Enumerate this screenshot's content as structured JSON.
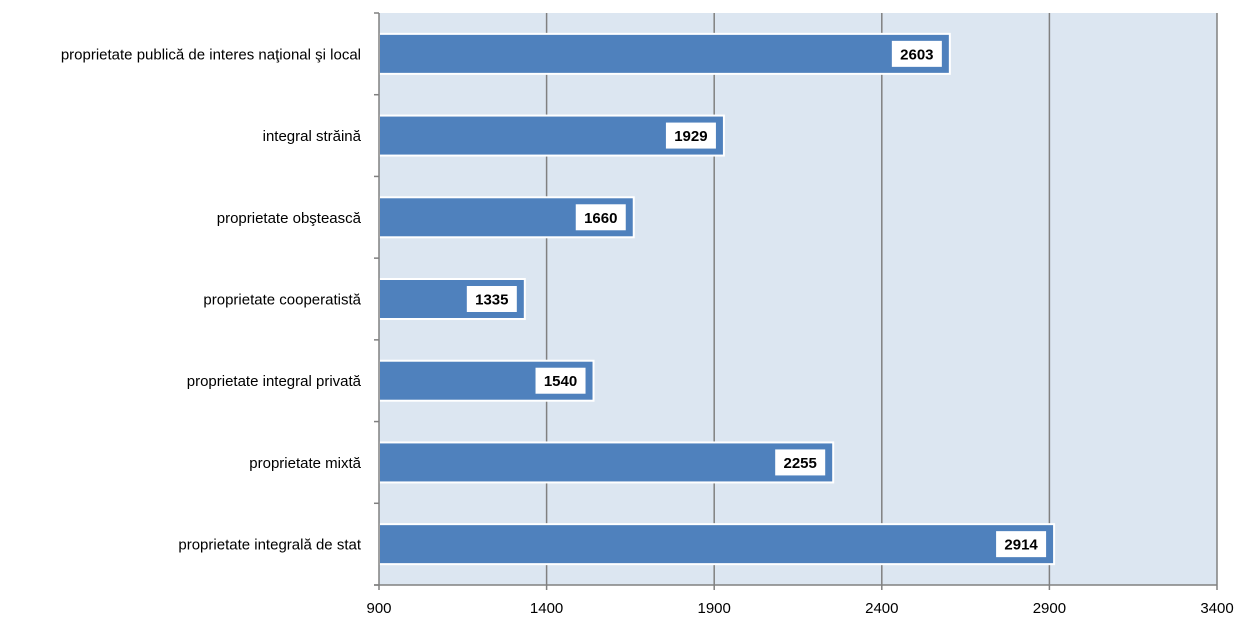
{
  "chart_data": {
    "type": "bar",
    "orientation": "horizontal",
    "title": "",
    "xlabel": "",
    "ylabel": "",
    "categories": [
      "proprietate publică de interes naţional şi local",
      "integral străină",
      "proprietate obştească",
      "proprietate cooperatistă",
      "proprietate integral privată",
      "proprietate mixtă",
      "proprietate integrală de stat"
    ],
    "values": [
      2603,
      1929,
      1660,
      1335,
      1540,
      2255,
      2914
    ],
    "xlim": [
      900,
      3400
    ],
    "x_ticks": [
      900,
      1400,
      1900,
      2400,
      2900,
      3400
    ],
    "x_tick_labels": [
      "900",
      "1400",
      "1900",
      "2400",
      "2900",
      "3400"
    ],
    "grid": "vertical",
    "legend": "none",
    "data_labels": true
  },
  "colors": {
    "plot_background": "#dce6f1",
    "bar_fill": "#4f81bd",
    "bar_border": "#ffffff",
    "gridline": "#808080",
    "axis": "#808080",
    "label_box": "#ffffff"
  }
}
